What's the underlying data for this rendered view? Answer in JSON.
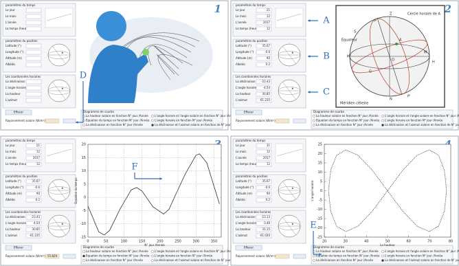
{
  "panels": [
    {
      "number": "1",
      "time": {
        "title": "paramètres du temps",
        "fields": [
          {
            "label": "Le jour"
          },
          {
            "label": "Le mois"
          },
          {
            "label": "L'année"
          },
          {
            "label": "Le temps (heure)"
          }
        ]
      },
      "position": {
        "title": "paramètres du position",
        "fields": [
          {
            "label": "Latitude (°)"
          },
          {
            "label": "Longitude (°)"
          },
          {
            "label": "Altitude (m)"
          },
          {
            "label": "Albédo"
          }
        ]
      },
      "coords": {
        "title": "Les coordonnées horaires",
        "fields": [
          {
            "label": "La déclinaison"
          },
          {
            "label": "L'angle horaire"
          },
          {
            "label": "La hauteur"
          },
          {
            "label": "L'azimut"
          }
        ]
      },
      "radiation": {
        "label": "Rayonnement solaire (W/m²)"
      },
      "button": "Effacer",
      "options": {
        "title": "Diagramme de courbe",
        "items": [
          "La hauteur solaire en fonction N° jour /Année",
          "Equation du temps en fonction N° jour /Année",
          "La déclinaison en fonction N° jour /Année",
          "L'angle horaire et l'angle solaire en fonction N° jour /Année",
          "L'angle horaire en fonction N° jour /Année",
          "La déclinaison et l'azimut solaire en fonction de N° jour /Année"
        ]
      },
      "callouts": [
        "D"
      ]
    },
    {
      "number": "2",
      "time": {
        "title": "paramètres du temps",
        "fields": [
          {
            "label": "Le jour",
            "value": "21"
          },
          {
            "label": "Le mois",
            "value": "12"
          },
          {
            "label": "L'année",
            "value": "2017"
          },
          {
            "label": "Le temps (heure)",
            "value": "12"
          }
        ]
      },
      "position": {
        "title": "paramètres du position",
        "fields": [
          {
            "label": "Latitude (°)",
            "value": "35.67"
          },
          {
            "label": "Longitude (°)",
            "value": "-0.6"
          },
          {
            "label": "Altitude (m)",
            "value": "90"
          },
          {
            "label": "Albédo",
            "value": "0.2"
          }
        ]
      },
      "coords": {
        "title": "Les coordonnées horaires",
        "fields": [
          {
            "label": "La déclinaison",
            "value": "-23.43"
          },
          {
            "label": "L'angle horaire",
            "value": "-4.54"
          },
          {
            "label": "La hauteur",
            "value": "30.85"
          },
          {
            "label": "L'azimut",
            "value": "-61.235"
          }
        ]
      },
      "radiation": {
        "label": "Rayonnement solaire (W/m²)"
      },
      "button": "Effacer",
      "options": {
        "title": "Diagramme de courbe",
        "items": [
          "La hauteur solaire en fonction N° jour /Année",
          "Equation du temps en fonction N° jour /Année",
          "La déclinaison en fonction N° jour /Année",
          "L'angle horaire et l'angle solaire en fonction N° jour /Année",
          "L'angle horaire en fonction N° jour /Année",
          "La déclinaison et l'azimut solaire en fonction de N° jour /Année"
        ]
      },
      "callouts": [
        "A",
        "B",
        "C"
      ],
      "sphere": {
        "labels": [
          "Cercle horaire de A",
          "Equateur",
          "Méridien céleste",
          "Z",
          "P",
          "A",
          "M",
          "M'",
          "H",
          "O",
          "G",
          "N",
          "P'",
          "S"
        ]
      }
    },
    {
      "number": "3",
      "time": {
        "title": "paramètres du temps",
        "fields": [
          {
            "label": "Le jour",
            "value": "21"
          },
          {
            "label": "Le mois",
            "value": "12"
          },
          {
            "label": "L'année",
            "value": "2017"
          },
          {
            "label": "Le temps (heure)",
            "value": "12"
          }
        ]
      },
      "position": {
        "title": "paramètres du position",
        "fields": [
          {
            "label": "Latitude (°)",
            "value": "35.67"
          },
          {
            "label": "Longitude (°)",
            "value": "-0.6"
          },
          {
            "label": "Altitude (m)",
            "value": "90"
          },
          {
            "label": "Albédo",
            "value": "0.2"
          }
        ]
      },
      "coords": {
        "title": "Les coordonnées horaires",
        "fields": [
          {
            "label": "La déclinaison",
            "value": "-23.43"
          },
          {
            "label": "L'angle horaire",
            "value": "-4.54"
          },
          {
            "label": "La hauteur",
            "value": "30.85"
          },
          {
            "label": "L'azimut",
            "value": "-61.235"
          }
        ]
      },
      "radiation": {
        "label": "Rayonnement solaire (W/m²)",
        "value": "55.829"
      },
      "button": "Effacer",
      "options": {
        "title": "Diagramme de courbe",
        "items": [
          "La hauteur solaire en fonction N° jour /Année",
          "Equation du temps en fonction N° jour /Année",
          "La déclinaison en fonction N° jour /Année",
          "L'angle horaire et l'angle solaire en fonction N° jour /Année",
          "L'angle horaire en fonction N° jour /Année",
          "La déclinaison et l'azimut solaire en fonction de N° jour /Année"
        ]
      },
      "callouts": [
        "F"
      ]
    },
    {
      "number": "4",
      "time": {
        "title": "paramètres du temps",
        "fields": [
          {
            "label": "Le jour",
            "value": "31"
          },
          {
            "label": "Le mois",
            "value": "12"
          },
          {
            "label": "L'année",
            "value": "2017"
          },
          {
            "label": "Le temps (heure)",
            "value": "12"
          }
        ]
      },
      "position": {
        "title": "paramètres du position",
        "fields": [
          {
            "label": "Latitude (°)",
            "value": "35.67"
          },
          {
            "label": "Longitude (°)",
            "value": "-0.6"
          },
          {
            "label": "Altitude (m)",
            "value": "90"
          },
          {
            "label": "Albédo",
            "value": "0.2"
          }
        ]
      },
      "coords": {
        "title": "Les coordonnées horaires",
        "fields": [
          {
            "label": "La déclinaison",
            "value": "-23.13"
          },
          {
            "label": "L'angle horaire",
            "value": "-3.46"
          },
          {
            "label": "La hauteur",
            "value": "31.15"
          },
          {
            "label": "L'azimut",
            "value": "-61.020"
          }
        ]
      },
      "radiation": {
        "label": "Rayonnement solaire (W/m²)"
      },
      "button": "Effacer",
      "options": {
        "title": "Diagramme de courbe",
        "items": [
          "La hauteur solaire en fonction N° jour /Année",
          "Equation du temps en fonction N° jour /Année",
          "La déclinaison en fonction N° jour /Année",
          "L'angle horaire et l'angle solaire en fonction N° jour /Année",
          "L'angle horaire en fonction N° jour /Année",
          "La déclinaison et l'azimut solaire en fonction de N° jour /Année"
        ]
      },
      "callouts": [
        "E"
      ]
    }
  ],
  "chart_data": [
    {
      "type": "line",
      "panel": 2,
      "x_label": "N° jour /Année",
      "y_label": "Equation du temps",
      "x": [
        0,
        30,
        45,
        60,
        90,
        120,
        135,
        150,
        180,
        210,
        225,
        240,
        270,
        300,
        310,
        330,
        365
      ],
      "values": [
        -3.3,
        -13.0,
        -14.2,
        -12.5,
        -4.2,
        2.8,
        3.7,
        2.4,
        -3.5,
        -6.3,
        -4.5,
        0,
        8.8,
        15.9,
        16.4,
        13,
        -2.5
      ],
      "color": "#333333",
      "xlim": [
        0,
        370
      ],
      "ylim": [
        -15,
        20
      ],
      "xticks": [
        0,
        50,
        100,
        150,
        200,
        250,
        300,
        350
      ],
      "yticks": [
        -15,
        -10,
        -5,
        0,
        5,
        10,
        15,
        20
      ],
      "grid": true
    },
    {
      "type": "line",
      "panel": 3,
      "x_label": "La hauteur",
      "y_label": "L'angle horaire",
      "x": [
        78,
        77,
        74.2,
        69.8,
        64,
        57.2,
        50,
        42.8,
        36,
        30.2,
        25.8,
        23,
        22,
        23,
        25.8,
        30.2,
        36,
        42.8,
        50,
        57.2,
        64,
        69.8,
        74.2,
        77,
        78
      ],
      "values": [
        0,
        11,
        19.1,
        22,
        19.1,
        11,
        0,
        -11,
        -19.1,
        -22,
        -19.1,
        -11,
        0,
        11,
        19.1,
        22,
        19.1,
        11,
        0,
        -11,
        -19.1,
        -22,
        -19.1,
        -11,
        0
      ],
      "color": "#333333",
      "xlim": [
        20,
        80
      ],
      "ylim": [
        -25,
        25
      ],
      "xticks": [
        20,
        30,
        40,
        50,
        60,
        70,
        80
      ],
      "yticks": [
        -25,
        -20,
        -15,
        -10,
        -5,
        0,
        5,
        10,
        15,
        20,
        25
      ],
      "grid": false,
      "dashed": true
    }
  ]
}
